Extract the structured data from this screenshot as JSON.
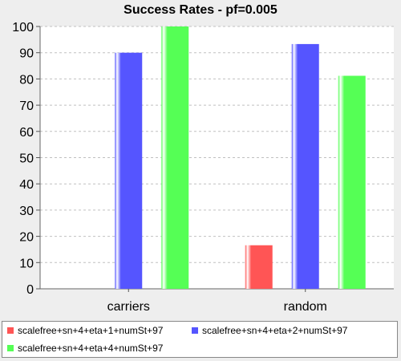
{
  "chart_data": {
    "type": "bar",
    "title": "Success Rates - pf=0.005",
    "xlabel": "",
    "ylabel": "",
    "categories": [
      "carriers",
      "random"
    ],
    "series": [
      {
        "name": "scalefree+sn+4+eta+1+numSt+97",
        "color": "#ff5555",
        "values": [
          0,
          16.6
        ]
      },
      {
        "name": "scalefree+sn+4+eta+2+numSt+97",
        "color": "#5555ff",
        "values": [
          90,
          93.3
        ]
      },
      {
        "name": "scalefree+sn+4+eta+4+numSt+97",
        "color": "#55ff55",
        "values": [
          100,
          81.2
        ]
      }
    ],
    "ylim": [
      0,
      100
    ],
    "yticks": [
      0,
      10,
      20,
      30,
      40,
      50,
      60,
      70,
      80,
      90,
      100
    ],
    "grid": true,
    "legend_position": "bottom"
  }
}
